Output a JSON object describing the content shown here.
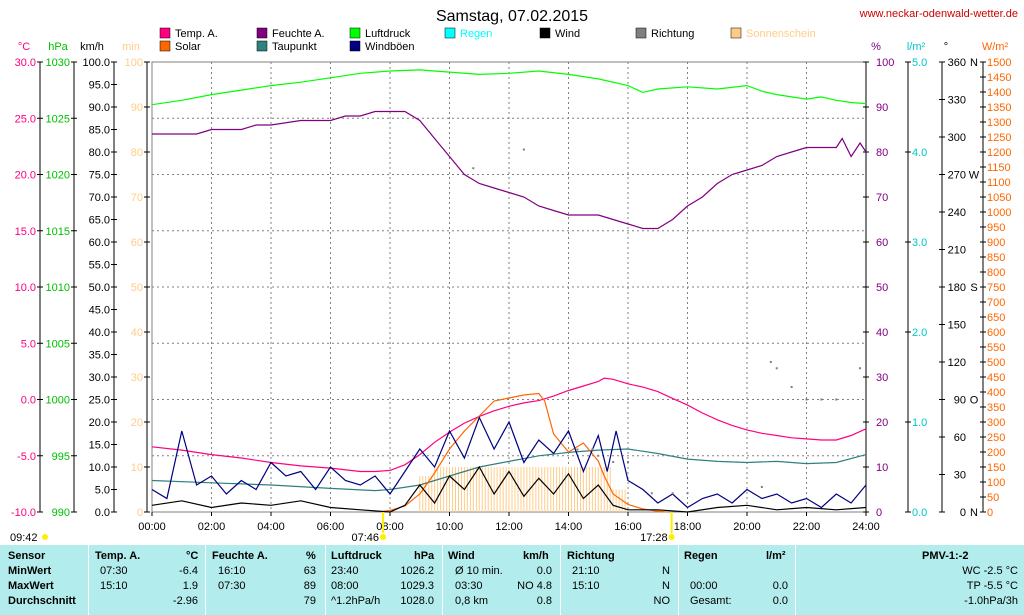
{
  "page": {
    "title": "Samstag, 07.02.2015",
    "site": "www.neckar-odenwald-wetter.de"
  },
  "legend": [
    {
      "label": "Temp. A.",
      "color": "#ff0080"
    },
    {
      "label": "Feuchte A.",
      "color": "#800080"
    },
    {
      "label": "Luftdruck",
      "color": "#00ff00"
    },
    {
      "label": "Regen",
      "color": "#00ffff"
    },
    {
      "label": "Wind",
      "color": "#000000"
    },
    {
      "label": "Richtung",
      "color": "#808080"
    },
    {
      "label": "Sonnenschein",
      "color": "#ffcc88"
    },
    {
      "label": "Solar",
      "color": "#ff6600"
    },
    {
      "label": "Taupunkt",
      "color": "#308080"
    },
    {
      "label": "Windböen",
      "color": "#000080"
    }
  ],
  "axes": {
    "temp": {
      "unit": "°C",
      "ticks": [
        "30.0",
        "25.0",
        "20.0",
        "15.0",
        "10.0",
        "5.0",
        "0.0",
        "-5.0",
        "-10.0"
      ],
      "range": [
        -10,
        30
      ],
      "color": "#ff0080"
    },
    "pressure": {
      "unit": "hPa",
      "ticks": [
        "1030",
        "1025",
        "1020",
        "1015",
        "1010",
        "1005",
        "1000",
        "995",
        "990"
      ],
      "range": [
        990,
        1030
      ],
      "color": "#00c000"
    },
    "wind": {
      "unit": "km/h",
      "ticks": [
        "100.0",
        "95.0",
        "90.0",
        "85.0",
        "80.0",
        "75.0",
        "70.0",
        "65.0",
        "60.0",
        "55.0",
        "50.0",
        "45.0",
        "40.0",
        "35.0",
        "30.0",
        "25.0",
        "20.0",
        "15.0",
        "10.0",
        "5.0",
        "0.0"
      ],
      "range": [
        0,
        100
      ]
    },
    "sunshine": {
      "unit": "min",
      "ticks": [
        "100",
        "90",
        "80",
        "70",
        "60",
        "50",
        "40",
        "30",
        "20",
        "10",
        "0"
      ],
      "range": [
        0,
        100
      ],
      "color": "#ffcc88"
    },
    "humidity": {
      "unit": "%",
      "ticks": [
        "100",
        "90",
        "80",
        "70",
        "60",
        "50",
        "40",
        "30",
        "20",
        "10",
        "0"
      ],
      "range": [
        0,
        100
      ],
      "color": "#800080"
    },
    "rain": {
      "unit": "l/m²",
      "ticks": [
        "5.0",
        "4.0",
        "3.0",
        "2.0",
        "1.0",
        "0.0"
      ],
      "range": [
        0,
        5
      ],
      "color": "#00c8c8"
    },
    "direction": {
      "unit": "°",
      "ticks": [
        "360",
        "330",
        "300",
        "270",
        "240",
        "210",
        "180",
        "150",
        "120",
        "90",
        "60",
        "30",
        "0"
      ],
      "letters": [
        "N",
        "",
        "",
        "W",
        "",
        "",
        "S",
        "",
        "",
        "O",
        "",
        "",
        "N"
      ],
      "range": [
        0,
        360
      ]
    },
    "solar": {
      "unit": "W/m²",
      "ticks": [
        "1500",
        "1450",
        "1400",
        "1350",
        "1300",
        "1250",
        "1200",
        "1150",
        "1100",
        "1050",
        "1000",
        "950",
        "900",
        "850",
        "800",
        "750",
        "700",
        "650",
        "600",
        "550",
        "500",
        "450",
        "400",
        "350",
        "300",
        "250",
        "200",
        "150",
        "100",
        "50",
        "0"
      ],
      "range": [
        0,
        1500
      ],
      "color": "#ff6600"
    },
    "time": {
      "ticks": [
        "00:00",
        "02:00",
        "04:00",
        "06:00",
        "08:00",
        "10:00",
        "12:00",
        "14:00",
        "16:00",
        "18:00",
        "20:00",
        "22:00",
        "24:00"
      ]
    }
  },
  "sun_markers": {
    "moonset": "09:42",
    "sunrise": "07:46",
    "sunset": "17:28"
  },
  "chart_data": {
    "type": "line",
    "x_unit": "hour of day",
    "xlim": [
      0,
      24
    ],
    "series": [
      {
        "name": "Temp. A.",
        "axis": "temp",
        "color": "#ff0080",
        "x": [
          0,
          1,
          2,
          3,
          4,
          5,
          6,
          7,
          7.5,
          8,
          8.5,
          9,
          9.5,
          10,
          10.5,
          11,
          11.5,
          12,
          12.5,
          13,
          13.5,
          14,
          14.5,
          15,
          15.2,
          15.5,
          16,
          16.5,
          17,
          17.5,
          18,
          18.5,
          19,
          19.5,
          20,
          20.5,
          21,
          21.5,
          22,
          22.5,
          23,
          23.5,
          24
        ],
        "y": [
          -4.2,
          -4.5,
          -4.9,
          -5.2,
          -5.6,
          -5.9,
          -6.1,
          -6.4,
          -6.4,
          -6.3,
          -5.8,
          -4.9,
          -3.8,
          -2.9,
          -2.1,
          -1.5,
          -1.0,
          -0.6,
          -0.3,
          -0.1,
          0.3,
          0.8,
          1.2,
          1.6,
          1.9,
          1.8,
          1.4,
          1.1,
          0.7,
          0.1,
          -0.5,
          -1.2,
          -1.8,
          -2.3,
          -2.7,
          -3.0,
          -3.2,
          -3.4,
          -3.5,
          -3.6,
          -3.6,
          -3.2,
          -2.6
        ]
      },
      {
        "name": "Feuchte A.",
        "axis": "humidity",
        "color": "#800080",
        "x": [
          0,
          1,
          1.5,
          2,
          3,
          3.5,
          4,
          5,
          6,
          6.5,
          7,
          7.5,
          8,
          8.5,
          9,
          9.5,
          10,
          10.5,
          11,
          11.5,
          12,
          12.5,
          13,
          13.5,
          14,
          14.5,
          15,
          15.5,
          16,
          16.5,
          17,
          17.5,
          18,
          18.5,
          19,
          19.5,
          20,
          20.5,
          21,
          21.5,
          22,
          22.5,
          23,
          23.2,
          23.5,
          23.8,
          24
        ],
        "y": [
          84,
          84,
          84,
          85,
          85,
          86,
          86,
          87,
          87,
          88,
          88,
          89,
          89,
          89,
          87,
          83,
          79,
          75,
          73,
          72,
          71,
          70,
          68,
          67,
          66,
          66,
          66,
          65,
          64,
          63,
          63,
          65,
          68,
          70,
          73,
          75,
          76,
          77,
          79,
          80,
          81,
          81,
          81,
          83,
          79,
          82,
          80
        ]
      },
      {
        "name": "Luftdruck",
        "axis": "pressure",
        "color": "#00ff00",
        "x": [
          0,
          1,
          2,
          3,
          4,
          5,
          6,
          7,
          8,
          9,
          10,
          11,
          12,
          13,
          14,
          15,
          16,
          16.5,
          17,
          18,
          19,
          20,
          20.5,
          21,
          21.5,
          22,
          22.5,
          23,
          23.5,
          24
        ],
        "y": [
          1026.2,
          1026.6,
          1027.1,
          1027.5,
          1027.9,
          1028.2,
          1028.6,
          1029.0,
          1029.2,
          1029.3,
          1029.1,
          1028.9,
          1029.0,
          1029.2,
          1028.9,
          1028.5,
          1027.9,
          1027.3,
          1027.6,
          1027.8,
          1027.6,
          1027.9,
          1027.4,
          1027.1,
          1026.9,
          1026.7,
          1026.9,
          1026.6,
          1026.4,
          1026.3
        ]
      },
      {
        "name": "Taupunkt",
        "axis": "temp",
        "color": "#308080",
        "x": [
          0,
          2,
          4,
          6,
          7.5,
          8,
          9,
          10,
          11,
          12,
          13,
          14,
          15,
          16,
          17,
          18,
          19,
          20,
          21,
          22,
          23,
          24
        ],
        "y": [
          -7.2,
          -7.4,
          -7.6,
          -7.9,
          -8.1,
          -8.0,
          -7.6,
          -6.8,
          -6.0,
          -5.5,
          -5.0,
          -4.7,
          -4.5,
          -4.4,
          -4.8,
          -5.3,
          -5.5,
          -5.6,
          -5.5,
          -5.7,
          -5.6,
          -4.9
        ]
      },
      {
        "name": "Solar",
        "axis": "solar",
        "color": "#ff6600",
        "x": [
          7.6,
          8,
          8.5,
          9,
          9.5,
          10,
          10.5,
          11,
          11.5,
          12,
          12.5,
          13,
          13.2,
          13.5,
          14,
          14.5,
          15,
          15.2,
          15.5,
          16,
          16.5,
          17,
          17.3
        ],
        "y": [
          0,
          5,
          20,
          60,
          130,
          210,
          270,
          320,
          370,
          380,
          390,
          395,
          370,
          260,
          200,
          230,
          170,
          120,
          60,
          25,
          10,
          3,
          0
        ]
      },
      {
        "name": "Wind",
        "axis": "wind",
        "color": "#000000",
        "x": [
          0,
          1,
          2,
          3,
          4,
          5,
          6,
          7,
          8,
          8.5,
          9,
          9.5,
          10,
          10.5,
          11,
          11.5,
          12,
          12.5,
          13,
          13.5,
          14,
          14.5,
          15,
          15.5,
          16,
          17,
          18,
          19,
          20,
          21,
          22,
          23,
          24
        ],
        "y": [
          1.5,
          2.5,
          1.0,
          2.0,
          1.5,
          2.5,
          1.0,
          0.5,
          0.0,
          1.5,
          6.0,
          2.0,
          8.0,
          5.0,
          10.0,
          4.0,
          9.0,
          3.5,
          7.5,
          4.0,
          8.5,
          3.0,
          6.0,
          1.5,
          0.5,
          0.5,
          0.0,
          1.0,
          1.5,
          0.5,
          1.0,
          0.5,
          1.0
        ]
      },
      {
        "name": "Windböen",
        "axis": "wind",
        "color": "#000080",
        "x": [
          0,
          0.5,
          1,
          1.5,
          2,
          2.5,
          3,
          3.5,
          4,
          4.5,
          5,
          5.5,
          6,
          6.5,
          7,
          7.5,
          8,
          8.5,
          9,
          9.5,
          10,
          10.5,
          11,
          11.5,
          12,
          12.5,
          13,
          13.5,
          14,
          14.5,
          15,
          15.3,
          15.6,
          16,
          16.5,
          17,
          17.5,
          18,
          18.5,
          19,
          19.5,
          20,
          20.5,
          21,
          21.5,
          22,
          22.5,
          23,
          23.5,
          24
        ],
        "y": [
          5,
          3,
          18,
          6,
          8,
          4,
          7,
          5,
          11,
          8,
          9,
          5,
          10,
          7,
          6,
          8,
          4,
          9,
          14,
          10,
          18,
          12,
          21,
          14,
          20,
          11,
          16,
          13,
          18,
          9,
          17,
          9,
          18,
          7,
          5,
          2,
          4,
          1,
          3,
          4,
          2,
          5,
          3,
          4,
          2,
          3,
          1,
          4,
          2,
          6
        ]
      }
    ],
    "sunshine_minutes": {
      "axis": "sunshine",
      "color": "#ffcc88",
      "x": [
        9,
        9.5,
        10,
        10.5,
        11,
        11.5,
        12,
        12.5,
        13,
        13.5,
        14,
        14.5,
        15,
        15.5,
        16
      ],
      "y": [
        8,
        10,
        10,
        10,
        10,
        10,
        10,
        10,
        10,
        10,
        10,
        10,
        10,
        5,
        0
      ]
    },
    "direction_points": {
      "axis": "direction",
      "color": "#808080",
      "x": [
        10.8,
        12.5,
        14.3,
        14.8,
        15.0,
        15.5,
        16.0,
        16.8,
        17.5,
        18.0,
        20.5,
        20.8,
        21.0,
        21.5,
        22.0,
        22.5,
        23.0,
        23.8
      ],
      "y": [
        275,
        290,
        50,
        50,
        45,
        40,
        40,
        15,
        15,
        15,
        20,
        120,
        115,
        100,
        90,
        90,
        90,
        115
      ]
    }
  },
  "stats": {
    "headers": {
      "sensor": "Sensor",
      "temp": "Temp. A.",
      "temp_unit": "°C",
      "hum": "Feuchte A.",
      "hum_unit": "%",
      "press": "Luftdruck",
      "press_unit": "hPa",
      "wind": "Wind",
      "wind_unit": "km/h",
      "dir": "Richtung",
      "rain": "Regen",
      "rain_unit": "l/m²",
      "pmv": "PMV-1:-2"
    },
    "rows": [
      {
        "label": "MinWert",
        "temp_time": "07:30",
        "temp_val": "-6.4",
        "hum_time": "16:10",
        "hum_val": "63",
        "press_time": "23:40",
        "press_val": "1026.2",
        "wind_time": "Ø 10 min.",
        "wind_val": "0.0",
        "dir_time": "21:10",
        "dir_val": "N",
        "rain_time": "",
        "rain_val": "",
        "pmv": "WC -2.5 °C"
      },
      {
        "label": "MaxWert",
        "temp_time": "15:10",
        "temp_val": "1.9",
        "hum_time": "07:30",
        "hum_val": "89",
        "press_time": "08:00",
        "press_val": "1029.3",
        "wind_time": "03:30",
        "wind_val": "NO 4.8",
        "dir_time": "15:10",
        "dir_val": "N",
        "rain_time": "00:00",
        "rain_val": "0.0",
        "pmv": "TP -5.5 °C"
      },
      {
        "label": "Durchschnitt",
        "temp_time": "",
        "temp_val": "-2.96",
        "hum_time": "",
        "hum_val": "79",
        "press_time": "^1.2hPa/h",
        "press_val": "1028.0",
        "wind_time": "0,8 km",
        "wind_val": "0.8",
        "dir_time": "",
        "dir_val": "NO",
        "rain_time": "Gesamt:",
        "rain_val": "0.0",
        "pmv": "-1.0hPa/3h"
      }
    ]
  }
}
